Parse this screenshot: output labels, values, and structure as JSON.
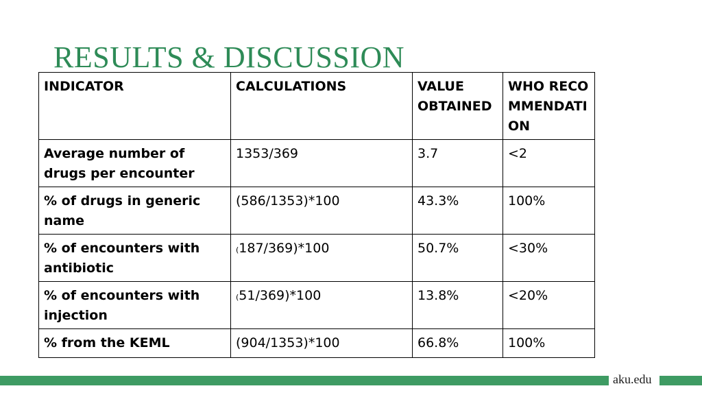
{
  "slide": {
    "title": "RESULTS & DISCUSSION",
    "footer": "aku.edu"
  },
  "table": {
    "headers": [
      "INDICATOR",
      "CALCULATIONS",
      "VALUE OBTAINED",
      "WHO RECOMMENDATION"
    ],
    "rows": [
      {
        "indicator": "Average number of drugs per encounter",
        "calc_prefix": "",
        "calc": "1353/369",
        "value": "3.7",
        "who": "<2"
      },
      {
        "indicator": "% of drugs in generic name",
        "calc_prefix": "",
        "calc": "(586/1353)*100",
        "value": "43.3%",
        "who": "100%"
      },
      {
        "indicator": "% of encounters with antibiotic",
        "calc_prefix": "(",
        "calc": "187/369)*100",
        "value": "50.7%",
        "who": "<30%"
      },
      {
        "indicator": "% of encounters with injection",
        "calc_prefix": "(",
        "calc": "51/369)*100",
        "value": "13.8%",
        "who": "<20%"
      },
      {
        "indicator": "% from the KEML",
        "calc_prefix": "",
        "calc": "(904/1353)*100",
        "value": "66.8%",
        "who": "100%"
      }
    ]
  },
  "colors": {
    "title": "#2e8b57",
    "bar": "#3e9b63"
  }
}
